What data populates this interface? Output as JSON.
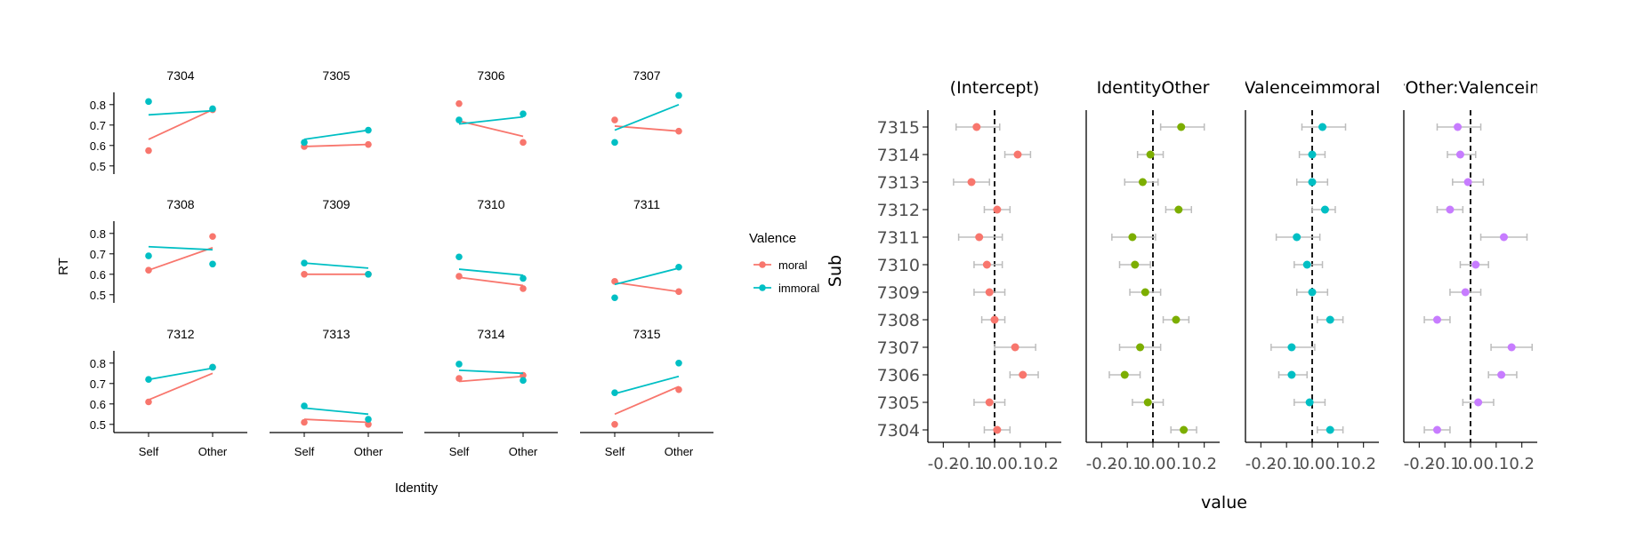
{
  "chart_data": [
    {
      "type": "line",
      "panels": [
        "7304",
        "7305",
        "7306",
        "7307",
        "7308",
        "7309",
        "7310",
        "7311",
        "7312",
        "7313",
        "7314",
        "7315"
      ],
      "xlabel": "Identity",
      "ylabel": "RT",
      "categories": [
        "Self",
        "Other"
      ],
      "yticks": [
        "0.5",
        "0.6",
        "0.7",
        "0.8"
      ],
      "ylim": [
        0.46,
        0.86
      ],
      "legend": {
        "title": "Valence",
        "entries": [
          "moral",
          "immoral"
        ],
        "position": "right"
      },
      "colors": {
        "moral": "#f8766d",
        "immoral": "#00bfc4"
      },
      "facets": [
        {
          "id": "7304",
          "points": {
            "moral": [
              0.575,
              0.775
            ],
            "immoral": [
              0.815,
              0.78
            ]
          },
          "fits": {
            "moral": [
              0.63,
              0.775
            ],
            "immoral": [
              0.75,
              0.77
            ]
          }
        },
        {
          "id": "7305",
          "points": {
            "moral": [
              0.595,
              0.605
            ],
            "immoral": [
              0.615,
              0.675
            ]
          },
          "fits": {
            "moral": [
              0.595,
              0.605
            ],
            "immoral": [
              0.63,
              0.675
            ]
          }
        },
        {
          "id": "7306",
          "points": {
            "moral": [
              0.805,
              0.615
            ],
            "immoral": [
              0.725,
              0.755
            ]
          },
          "fits": {
            "moral": [
              0.72,
              0.645
            ],
            "immoral": [
              0.705,
              0.74
            ]
          }
        },
        {
          "id": "7307",
          "points": {
            "moral": [
              0.725,
              0.67
            ],
            "immoral": [
              0.615,
              0.845
            ]
          },
          "fits": {
            "moral": [
              0.695,
              0.67
            ],
            "immoral": [
              0.675,
              0.8
            ]
          }
        },
        {
          "id": "7308",
          "points": {
            "moral": [
              0.62,
              0.785
            ],
            "immoral": [
              0.69,
              0.65
            ]
          },
          "fits": {
            "moral": [
              0.62,
              0.73
            ],
            "immoral": [
              0.735,
              0.72
            ]
          }
        },
        {
          "id": "7309",
          "points": {
            "moral": [
              0.6,
              0.6
            ],
            "immoral": [
              0.655,
              0.6
            ]
          },
          "fits": {
            "moral": [
              0.6,
              0.6
            ],
            "immoral": [
              0.655,
              0.63
            ]
          }
        },
        {
          "id": "7310",
          "points": {
            "moral": [
              0.59,
              0.53
            ],
            "immoral": [
              0.685,
              0.58
            ]
          },
          "fits": {
            "moral": [
              0.585,
              0.545
            ],
            "immoral": [
              0.625,
              0.595
            ]
          }
        },
        {
          "id": "7311",
          "points": {
            "moral": [
              0.565,
              0.515
            ],
            "immoral": [
              0.485,
              0.635
            ]
          },
          "fits": {
            "moral": [
              0.56,
              0.515
            ],
            "immoral": [
              0.55,
              0.63
            ]
          }
        },
        {
          "id": "7312",
          "points": {
            "moral": [
              0.61,
              0.78
            ],
            "immoral": [
              0.72,
              0.78
            ]
          },
          "fits": {
            "moral": [
              0.62,
              0.75
            ],
            "immoral": [
              0.72,
              0.775
            ]
          }
        },
        {
          "id": "7313",
          "points": {
            "moral": [
              0.51,
              0.5
            ],
            "immoral": [
              0.59,
              0.525
            ]
          },
          "fits": {
            "moral": [
              0.525,
              0.51
            ],
            "immoral": [
              0.58,
              0.55
            ]
          }
        },
        {
          "id": "7314",
          "points": {
            "moral": [
              0.725,
              0.74
            ],
            "immoral": [
              0.795,
              0.715
            ]
          },
          "fits": {
            "moral": [
              0.71,
              0.735
            ],
            "immoral": [
              0.765,
              0.75
            ]
          }
        },
        {
          "id": "7315",
          "points": {
            "moral": [
              0.5,
              0.67
            ],
            "immoral": [
              0.655,
              0.8
            ]
          },
          "fits": {
            "moral": [
              0.55,
              0.685
            ],
            "immoral": [
              0.65,
              0.735
            ]
          }
        }
      ]
    },
    {
      "type": "scatter",
      "xlabel": "value",
      "ylabel": "Sub",
      "xlim": [
        -0.26,
        0.26
      ],
      "xticks": [
        "-0.2",
        "-0.1",
        "0.0",
        "0.1",
        "0.2"
      ],
      "xtick_values": [
        -0.2,
        -0.1,
        0.0,
        0.1,
        0.2
      ],
      "reference_line": 0,
      "errorbar_color": "#bdbdbd",
      "subjects": [
        "7315",
        "7314",
        "7313",
        "7312",
        "7311",
        "7310",
        "7309",
        "7308",
        "7307",
        "7306",
        "7305",
        "7304"
      ],
      "panels": [
        {
          "title": "(Intercept)",
          "color": "#f8766d",
          "points": [
            {
              "v": -0.07,
              "lo": -0.15,
              "hi": 0.02
            },
            {
              "v": 0.09,
              "lo": 0.04,
              "hi": 0.14
            },
            {
              "v": -0.09,
              "lo": -0.16,
              "hi": -0.02
            },
            {
              "v": 0.01,
              "lo": -0.04,
              "hi": 0.06
            },
            {
              "v": -0.06,
              "lo": -0.14,
              "hi": 0.03
            },
            {
              "v": -0.03,
              "lo": -0.08,
              "hi": 0.03
            },
            {
              "v": -0.02,
              "lo": -0.08,
              "hi": 0.04
            },
            {
              "v": 0.0,
              "lo": -0.05,
              "hi": 0.04
            },
            {
              "v": 0.08,
              "lo": 0.0,
              "hi": 0.16
            },
            {
              "v": 0.11,
              "lo": 0.06,
              "hi": 0.17
            },
            {
              "v": -0.02,
              "lo": -0.08,
              "hi": 0.04
            },
            {
              "v": 0.01,
              "lo": -0.04,
              "hi": 0.06
            }
          ]
        },
        {
          "title": "IdentityOther",
          "color": "#7cae00",
          "points": [
            {
              "v": 0.11,
              "lo": 0.03,
              "hi": 0.2
            },
            {
              "v": -0.01,
              "lo": -0.06,
              "hi": 0.04
            },
            {
              "v": -0.04,
              "lo": -0.11,
              "hi": 0.02
            },
            {
              "v": 0.1,
              "lo": 0.05,
              "hi": 0.15
            },
            {
              "v": -0.08,
              "lo": -0.16,
              "hi": 0.01
            },
            {
              "v": -0.07,
              "lo": -0.13,
              "hi": -0.01
            },
            {
              "v": -0.03,
              "lo": -0.09,
              "hi": 0.03
            },
            {
              "v": 0.09,
              "lo": 0.04,
              "hi": 0.14
            },
            {
              "v": -0.05,
              "lo": -0.13,
              "hi": 0.03
            },
            {
              "v": -0.11,
              "lo": -0.17,
              "hi": -0.05
            },
            {
              "v": -0.02,
              "lo": -0.08,
              "hi": 0.04
            },
            {
              "v": 0.12,
              "lo": 0.07,
              "hi": 0.17
            }
          ]
        },
        {
          "title": "Valenceimmoral",
          "color": "#00bfc4",
          "points": [
            {
              "v": 0.04,
              "lo": -0.04,
              "hi": 0.13
            },
            {
              "v": 0.0,
              "lo": -0.05,
              "hi": 0.05
            },
            {
              "v": 0.0,
              "lo": -0.06,
              "hi": 0.06
            },
            {
              "v": 0.05,
              "lo": 0.0,
              "hi": 0.09
            },
            {
              "v": -0.06,
              "lo": -0.14,
              "hi": 0.03
            },
            {
              "v": -0.02,
              "lo": -0.07,
              "hi": 0.04
            },
            {
              "v": 0.0,
              "lo": -0.06,
              "hi": 0.06
            },
            {
              "v": 0.07,
              "lo": 0.02,
              "hi": 0.12
            },
            {
              "v": -0.08,
              "lo": -0.16,
              "hi": 0.01
            },
            {
              "v": -0.08,
              "lo": -0.13,
              "hi": -0.02
            },
            {
              "v": -0.01,
              "lo": -0.07,
              "hi": 0.05
            },
            {
              "v": 0.07,
              "lo": 0.02,
              "hi": 0.12
            }
          ]
        },
        {
          "title": "yOther:Valenceim",
          "color": "#c77cff",
          "points": [
            {
              "v": -0.05,
              "lo": -0.13,
              "hi": 0.04
            },
            {
              "v": -0.04,
              "lo": -0.09,
              "hi": 0.02
            },
            {
              "v": -0.01,
              "lo": -0.07,
              "hi": 0.05
            },
            {
              "v": -0.08,
              "lo": -0.13,
              "hi": -0.03
            },
            {
              "v": 0.13,
              "lo": 0.04,
              "hi": 0.22
            },
            {
              "v": 0.02,
              "lo": -0.04,
              "hi": 0.07
            },
            {
              "v": -0.02,
              "lo": -0.08,
              "hi": 0.04
            },
            {
              "v": -0.13,
              "lo": -0.18,
              "hi": -0.08
            },
            {
              "v": 0.16,
              "lo": 0.08,
              "hi": 0.24
            },
            {
              "v": 0.12,
              "lo": 0.07,
              "hi": 0.18
            },
            {
              "v": 0.03,
              "lo": -0.03,
              "hi": 0.09
            },
            {
              "v": -0.13,
              "lo": -0.18,
              "hi": -0.08
            }
          ]
        }
      ]
    }
  ]
}
